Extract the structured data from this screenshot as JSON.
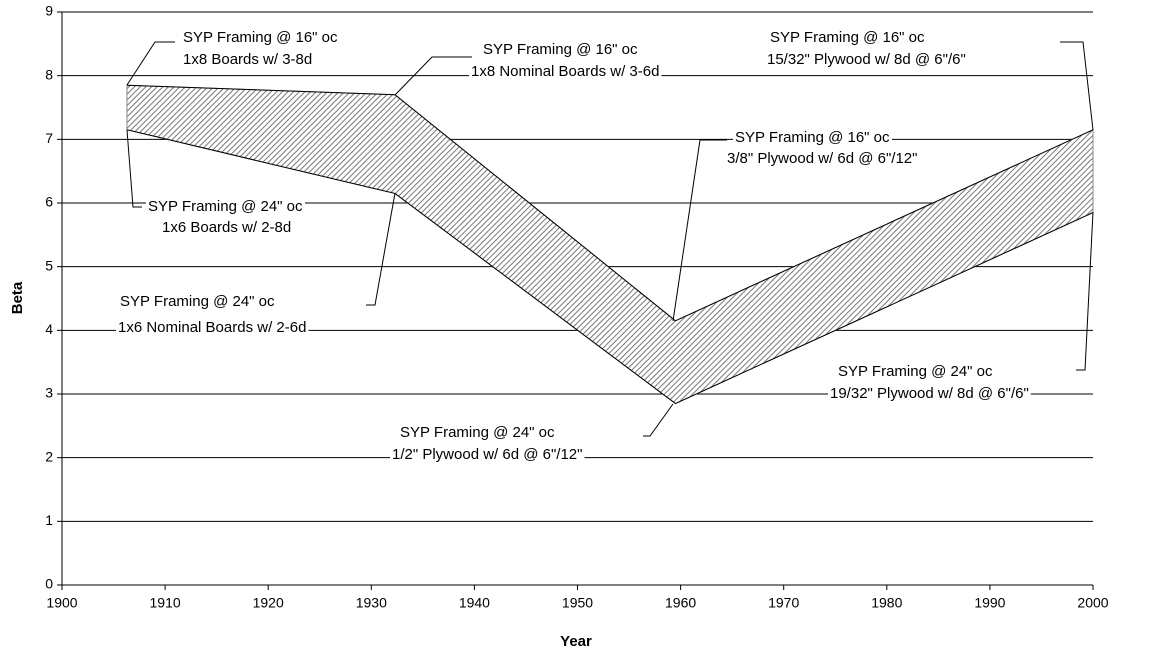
{
  "chart_data": {
    "type": "band",
    "x_label": "Year",
    "y_label": "Beta",
    "x": [
      1906.3,
      1932.3,
      1959.5,
      2000
    ],
    "series": [
      {
        "color": "#000000",
        "values": [
          7.85,
          7.7,
          4.15,
          7.15
        ]
      },
      {
        "color": "#000000",
        "values": [
          7.15,
          6.15,
          2.85,
          5.85
        ]
      }
    ],
    "fill_color": "#888888",
    "xlim": [
      1900,
      2000
    ],
    "xticks": [
      1900,
      1910,
      1920,
      1930,
      1940,
      1950,
      1960,
      1970,
      1980,
      1990,
      2000
    ],
    "ylim": [
      0,
      9
    ],
    "yticks": [
      0,
      1,
      2,
      3,
      4,
      5,
      6,
      7,
      8,
      9
    ],
    "grid": true,
    "annotations": [
      {
        "lines": [
          "SYP Framing @ 16\" oc",
          "1x8 Boards w/ 3-8d"
        ]
      },
      {
        "lines": [
          "SYP Framing @ 24\" oc",
          "1x6 Boards w/ 2-8d"
        ]
      },
      {
        "lines": [
          "SYP Framing @ 16\" oc",
          "1x8 Nominal Boards w/ 3-6d"
        ]
      },
      {
        "lines": [
          "SYP Framing @ 24\" oc",
          "1x6 Nominal Boards w/ 2-6d"
        ]
      },
      {
        "lines": [
          "SYP Framing @ 16\" oc",
          "3/8\" Plywood w/ 6d @ 6\"/12\""
        ]
      },
      {
        "lines": [
          "SYP Framing @ 16\" oc",
          "15/32\" Plywood w/ 8d @ 6\"/6\""
        ]
      },
      {
        "lines": [
          "SYP Framing @ 24\" oc",
          "19/32\" Plywood w/ 8d @ 6\"/6\""
        ]
      },
      {
        "lines": [
          "SYP Framing @ 24\" oc",
          "1/2\" Plywood w/ 6d @ 6\"/12\""
        ]
      }
    ]
  }
}
